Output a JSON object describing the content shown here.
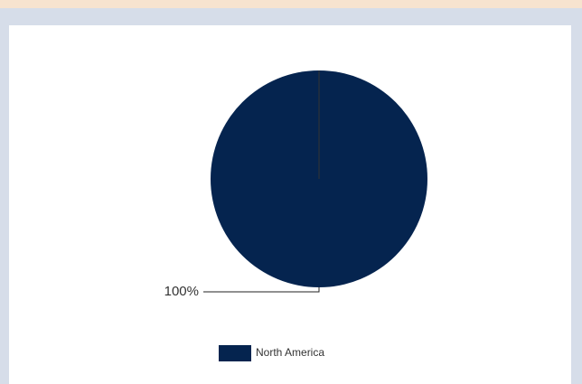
{
  "chart_data": {
    "type": "pie",
    "categories": [
      "North America"
    ],
    "values": [
      100
    ],
    "value_labels": [
      "100%"
    ],
    "colors": [
      "#05244f"
    ]
  }
}
